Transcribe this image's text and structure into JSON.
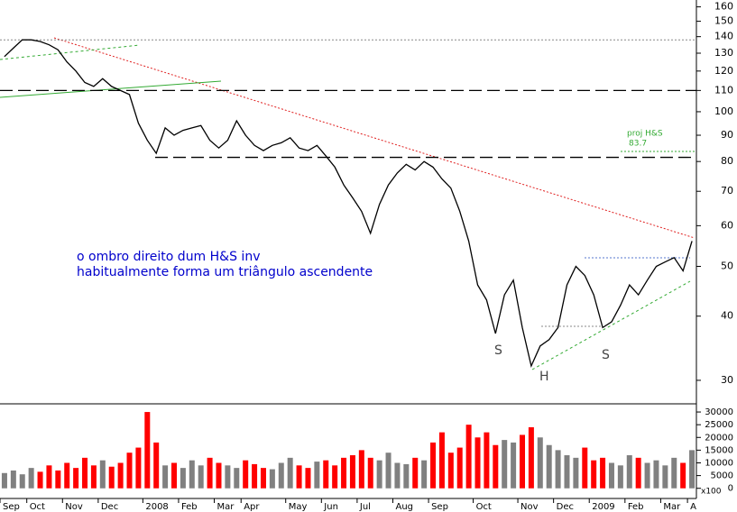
{
  "chart_data": [
    {
      "type": "line",
      "log_scale": true,
      "color": "#000000",
      "values": [
        128,
        133,
        138,
        138,
        137,
        135,
        132,
        125,
        120,
        114,
        112,
        116,
        112,
        110,
        108,
        95,
        88,
        83,
        93,
        90,
        92,
        93,
        94,
        88,
        85,
        88,
        96,
        90,
        86,
        84,
        86,
        87,
        89,
        85,
        84,
        86,
        82,
        78,
        72,
        68,
        64,
        58,
        66,
        72,
        76,
        79,
        77,
        80,
        78,
        74,
        71,
        64,
        56,
        46,
        43,
        37,
        44,
        47,
        38,
        32,
        35,
        36,
        38,
        46,
        50,
        48,
        44,
        38,
        39,
        42,
        46,
        44,
        47,
        50,
        51,
        52,
        49,
        56
      ],
      "ylim": [
        27,
        165
      ],
      "yticks": [
        30,
        40,
        50,
        60,
        70,
        80,
        90,
        100,
        110,
        120,
        130,
        140,
        150,
        160
      ],
      "levels": [
        {
          "value": 138,
          "style": "dotted",
          "color": "#888888"
        },
        {
          "value": 110,
          "style": "dashed",
          "color": "#000000"
        },
        {
          "value": 81.5,
          "style": "dashed",
          "color": "#000000"
        },
        {
          "value": 83.7,
          "style": "dotted",
          "color": "#33aa33",
          "label": "proj H&S"
        }
      ],
      "annotations": [
        "o ombro direito dum H&S inv",
        "habitualmente forma um triângulo ascendente",
        "S",
        "H",
        "S"
      ]
    },
    {
      "type": "bar",
      "up_color": "#808080",
      "down_color": "#ff0000",
      "unit_label": "x100",
      "categories": [
        "Sep",
        null,
        null,
        "Oct",
        null,
        null,
        null,
        "Nov",
        null,
        null,
        null,
        "Dec",
        null,
        null,
        null,
        null,
        "2008",
        null,
        null,
        null,
        "Feb",
        null,
        null,
        null,
        "Mar",
        null,
        null,
        "Apr",
        null,
        null,
        null,
        null,
        "May",
        null,
        null,
        null,
        "Jun",
        null,
        null,
        null,
        "Jul",
        null,
        null,
        null,
        "Aug",
        null,
        null,
        null,
        "Sep",
        null,
        null,
        null,
        null,
        "Oct",
        null,
        null,
        null,
        null,
        "Nov",
        null,
        null,
        null,
        "Dec",
        null,
        null,
        null,
        "2009",
        null,
        null,
        null,
        "Feb",
        null,
        null,
        null,
        "Mar",
        null,
        null,
        "A"
      ],
      "values": [
        6000,
        7000,
        5500,
        8000,
        6500,
        9000,
        7000,
        10000,
        8000,
        12000,
        9000,
        11000,
        8500,
        10000,
        14000,
        16000,
        30000,
        18000,
        9000,
        10000,
        8000,
        11000,
        9000,
        12000,
        10000,
        9000,
        8000,
        11000,
        9500,
        8000,
        7500,
        10000,
        12000,
        9000,
        8000,
        10500,
        11000,
        9000,
        12000,
        13000,
        15000,
        12000,
        11000,
        14000,
        10000,
        9500,
        12000,
        11000,
        18000,
        22000,
        14000,
        16000,
        25000,
        20000,
        22000,
        17000,
        19000,
        18000,
        21000,
        24000,
        20000,
        17000,
        15000,
        13000,
        12000,
        16000,
        11000,
        12000,
        10000,
        9000,
        13000,
        12000,
        10000,
        11000,
        9000,
        12000,
        10000,
        15000
      ],
      "ylim": [
        -4000,
        32500
      ],
      "yticks": [
        0,
        5000,
        10000,
        15000,
        20000,
        25000,
        30000
      ]
    }
  ]
}
